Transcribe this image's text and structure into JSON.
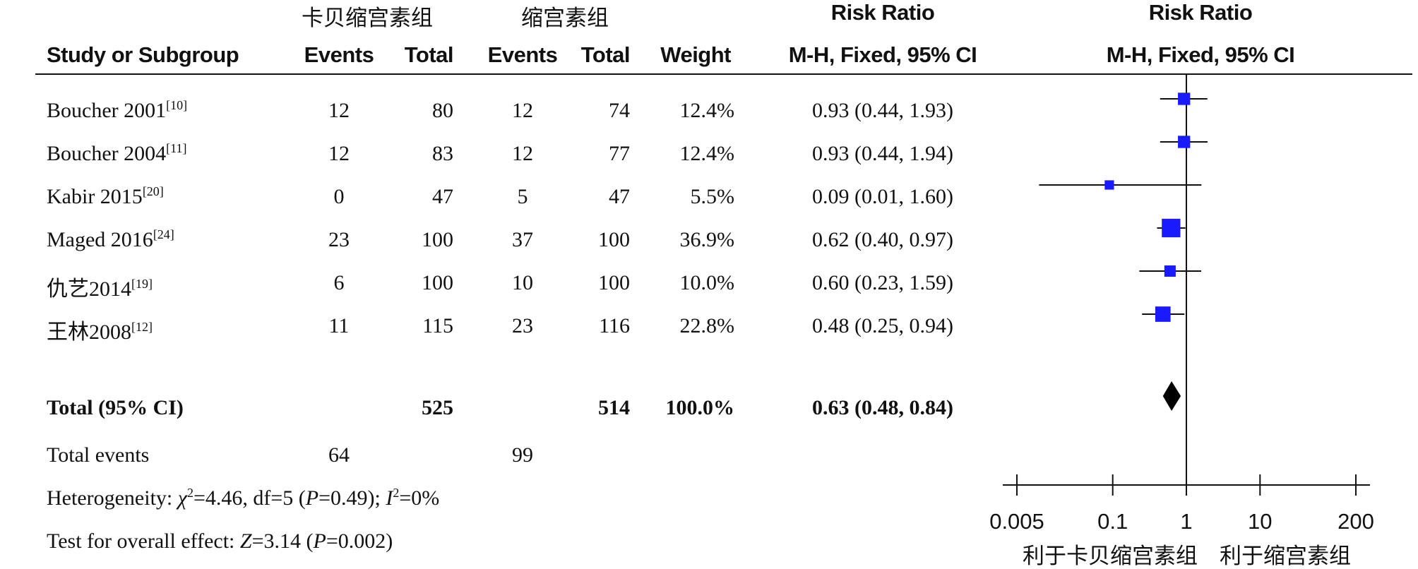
{
  "header": {
    "group1": "卡贝缩宫素组",
    "group2": "缩宫素组",
    "risk_ratio_left": "Risk Ratio",
    "risk_ratio_right": "Risk Ratio",
    "col_study": "Study or Subgroup",
    "col_events1": "Events",
    "col_total1": "Total",
    "col_events2": "Events",
    "col_total2": "Total",
    "col_weight": "Weight",
    "col_ci_left": "M-H, Fixed, 95% CI",
    "col_ci_right": "M-H, Fixed, 95% CI"
  },
  "studies": [
    {
      "name": "Boucher 2001",
      "ref": "[10]",
      "events1": "12",
      "total1": "80",
      "events2": "12",
      "total2": "74",
      "weight": "12.4%",
      "ci": "0.93 (0.44, 1.93)"
    },
    {
      "name": "Boucher 2004",
      "ref": "[11]",
      "events1": "12",
      "total1": "83",
      "events2": "12",
      "total2": "77",
      "weight": "12.4%",
      "ci": "0.93 (0.44, 1.94)"
    },
    {
      "name": "Kabir 2015",
      "ref": "[20]",
      "events1": "0",
      "total1": "47",
      "events2": "5",
      "total2": "47",
      "weight": "5.5%",
      "ci": "0.09 (0.01, 1.60)"
    },
    {
      "name": "Maged 2016",
      "ref": "[24]",
      "events1": "23",
      "total1": "100",
      "events2": "37",
      "total2": "100",
      "weight": "36.9%",
      "ci": "0.62 (0.40, 0.97)"
    },
    {
      "name": "仇艺2014",
      "ref": "[19]",
      "events1": "6",
      "total1": "100",
      "events2": "10",
      "total2": "100",
      "weight": "10.0%",
      "ci": "0.60 (0.23, 1.59)"
    },
    {
      "name": "王林2008",
      "ref": "[12]",
      "events1": "11",
      "total1": "115",
      "events2": "23",
      "total2": "116",
      "weight": "22.8%",
      "ci": "0.48 (0.25, 0.94)"
    }
  ],
  "total": {
    "label": "Total (95% CI)",
    "total1": "525",
    "total2": "514",
    "weight": "100.0%",
    "ci": "0.63 (0.48, 0.84)"
  },
  "total_events": {
    "label": "Total events",
    "events1": "64",
    "events2": "99"
  },
  "heterogeneity": {
    "prefix": "Heterogeneity: ",
    "chi_symbol": "χ",
    "chi_value": "=4.46, df=5 (",
    "p_symbol": "P",
    "p_value": "=0.49); ",
    "i_symbol": "I",
    "i_value": "=0%"
  },
  "overall": {
    "prefix": "Test for overall effect: ",
    "z_symbol": "Z",
    "z_value": "=3.14 (",
    "p_symbol": "P",
    "p_value": "=0.002)"
  },
  "chart_data": {
    "type": "scatter",
    "scale": "log",
    "xlim": [
      0.005,
      200
    ],
    "ticks": [
      0.005,
      0.1,
      1,
      10,
      200
    ],
    "tick_labels": [
      "0.005",
      "0.1",
      "1",
      "10",
      "200"
    ],
    "null_value": 1,
    "favours_left": "利于卡贝缩宫素组",
    "favours_right": "利于缩宫素组",
    "marker_color": "#1a1aff",
    "points": [
      {
        "study": "Boucher 2001",
        "rr": 0.93,
        "lower": 0.44,
        "upper": 1.93,
        "weight": 12.4
      },
      {
        "study": "Boucher 2004",
        "rr": 0.93,
        "lower": 0.44,
        "upper": 1.94,
        "weight": 12.4
      },
      {
        "study": "Kabir 2015",
        "rr": 0.09,
        "lower": 0.01,
        "upper": 1.6,
        "weight": 5.5
      },
      {
        "study": "Maged 2016",
        "rr": 0.62,
        "lower": 0.4,
        "upper": 0.97,
        "weight": 36.9
      },
      {
        "study": "仇艺2014",
        "rr": 0.6,
        "lower": 0.23,
        "upper": 1.59,
        "weight": 10.0
      },
      {
        "study": "王林2008",
        "rr": 0.48,
        "lower": 0.25,
        "upper": 0.94,
        "weight": 22.8
      }
    ],
    "pooled": {
      "rr": 0.63,
      "lower": 0.48,
      "upper": 0.84
    }
  }
}
